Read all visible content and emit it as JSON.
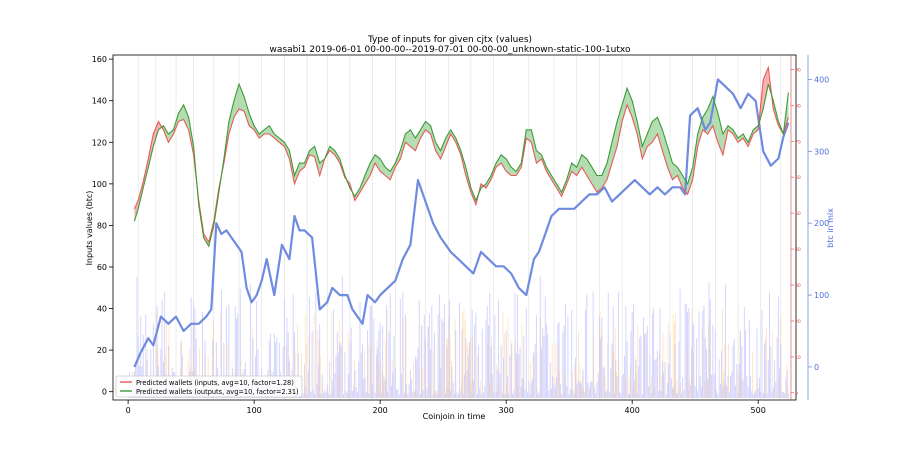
{
  "chart_data": {
    "type": "line",
    "title": "Type of inputs for given cjtx (values)",
    "subtitle": "wasabi1 2019-06-01 00-00-00--2019-07-01 00-00-00_unknown-static-100-1utxo",
    "xlabel": "Coinjoin in time",
    "ylabel": "Inputs values (btc)",
    "y2label": "btc in mix",
    "xlim": [
      -12,
      530
    ],
    "ylim": [
      -4,
      162
    ],
    "y2lim": [
      -46,
      434
    ],
    "y3lim": [
      -2,
      94
    ],
    "x_ticks": [
      "0",
      "100",
      "200",
      "300",
      "400",
      "500"
    ],
    "y_ticks": [
      "0",
      "20",
      "40",
      "60",
      "80",
      "100",
      "120",
      "140",
      "160"
    ],
    "y2_ticks": [
      "0",
      "100",
      "200",
      "300",
      "400"
    ],
    "y3_ticks": [
      "0",
      "10",
      "20",
      "30",
      "40",
      "50",
      "60",
      "70",
      "80",
      "90"
    ],
    "grid": false,
    "legend_position": "lower-left",
    "colors": {
      "inputs_line": "#e8595a",
      "outputs_line": "#3f9a3a",
      "fill_inputs_higher": "#f4a3a3",
      "fill_outputs_higher": "#a6d6a2",
      "btc_in_mix": "#6f8be0",
      "background_bars": "#c8c8ff",
      "background_bars_orange": "#ffd7a0",
      "secondary_red_axis": "#d64545",
      "vertical_markers": "#d8d8d8"
    },
    "series": [
      {
        "name": "Predicted wallets (inputs, avg=10, factor=1.28)",
        "x": [
          5,
          8,
          12,
          16,
          20,
          24,
          28,
          32,
          36,
          40,
          44,
          48,
          52,
          56,
          60,
          64,
          68,
          72,
          76,
          80,
          84,
          88,
          92,
          96,
          100,
          104,
          108,
          112,
          116,
          120,
          124,
          128,
          132,
          136,
          140,
          144,
          148,
          152,
          156,
          160,
          164,
          168,
          172,
          176,
          180,
          184,
          188,
          192,
          196,
          200,
          204,
          208,
          212,
          216,
          220,
          224,
          228,
          232,
          236,
          240,
          244,
          248,
          252,
          256,
          260,
          264,
          268,
          272,
          276,
          280,
          284,
          288,
          292,
          296,
          300,
          304,
          308,
          312,
          316,
          320,
          324,
          328,
          332,
          336,
          340,
          344,
          348,
          352,
          356,
          360,
          364,
          368,
          372,
          376,
          380,
          384,
          388,
          392,
          396,
          400,
          404,
          408,
          412,
          416,
          420,
          424,
          428,
          432,
          436,
          440,
          444,
          448,
          452,
          456,
          460,
          464,
          468,
          472,
          476,
          480,
          484,
          488,
          492,
          496,
          500,
          504,
          508,
          512,
          516,
          520,
          524
        ],
        "values": [
          88,
          92,
          101,
          112,
          124,
          130,
          126,
          120,
          124,
          130,
          131,
          126,
          114,
          92,
          76,
          72,
          82,
          98,
          110,
          124,
          132,
          136,
          135,
          128,
          126,
          122,
          124,
          124,
          122,
          120,
          118,
          112,
          100,
          106,
          108,
          114,
          113,
          104,
          112,
          116,
          114,
          110,
          103,
          100,
          92,
          96,
          100,
          104,
          110,
          106,
          104,
          102,
          108,
          112,
          120,
          118,
          116,
          122,
          126,
          124,
          116,
          112,
          118,
          124,
          120,
          114,
          104,
          96,
          90,
          100,
          98,
          102,
          108,
          110,
          106,
          104,
          104,
          108,
          122,
          120,
          110,
          112,
          106,
          102,
          98,
          94,
          100,
          106,
          104,
          108,
          104,
          100,
          96,
          98,
          102,
          110,
          118,
          130,
          138,
          132,
          124,
          112,
          118,
          120,
          124,
          116,
          108,
          102,
          104,
          98,
          95,
          102,
          118,
          126,
          124,
          128,
          120,
          114,
          126,
          124,
          120,
          122,
          118,
          124,
          126,
          150,
          156,
          136,
          128,
          124,
          132
        ]
      },
      {
        "name": "Predicted wallets (outputs, avg=10, factor=2.31)",
        "x": [
          5,
          8,
          12,
          16,
          20,
          24,
          28,
          32,
          36,
          40,
          44,
          48,
          52,
          56,
          60,
          64,
          68,
          72,
          76,
          80,
          84,
          88,
          92,
          96,
          100,
          104,
          108,
          112,
          116,
          120,
          124,
          128,
          132,
          136,
          140,
          144,
          148,
          152,
          156,
          160,
          164,
          168,
          172,
          176,
          180,
          184,
          188,
          192,
          196,
          200,
          204,
          208,
          212,
          216,
          220,
          224,
          228,
          232,
          236,
          240,
          244,
          248,
          252,
          256,
          260,
          264,
          268,
          272,
          276,
          280,
          284,
          288,
          292,
          296,
          300,
          304,
          308,
          312,
          316,
          320,
          324,
          328,
          332,
          336,
          340,
          344,
          348,
          352,
          356,
          360,
          364,
          368,
          372,
          376,
          380,
          384,
          388,
          392,
          396,
          400,
          404,
          408,
          412,
          416,
          420,
          424,
          428,
          432,
          436,
          440,
          444,
          448,
          452,
          456,
          460,
          464,
          468,
          472,
          476,
          480,
          484,
          488,
          492,
          496,
          500,
          504,
          508,
          512,
          516,
          520,
          524
        ],
        "values": [
          82,
          88,
          98,
          108,
          118,
          126,
          128,
          124,
          126,
          134,
          138,
          132,
          118,
          90,
          74,
          70,
          80,
          96,
          112,
          130,
          140,
          148,
          142,
          134,
          128,
          124,
          126,
          128,
          124,
          122,
          120,
          116,
          104,
          110,
          110,
          116,
          118,
          110,
          112,
          118,
          116,
          112,
          104,
          98,
          94,
          98,
          104,
          110,
          114,
          112,
          108,
          106,
          110,
          116,
          124,
          126,
          122,
          126,
          130,
          128,
          120,
          116,
          122,
          126,
          122,
          116,
          108,
          98,
          92,
          98,
          100,
          104,
          110,
          114,
          112,
          108,
          106,
          110,
          126,
          126,
          116,
          114,
          108,
          104,
          100,
          96,
          102,
          110,
          108,
          114,
          112,
          108,
          104,
          104,
          110,
          120,
          130,
          138,
          146,
          140,
          130,
          118,
          124,
          130,
          132,
          126,
          118,
          110,
          108,
          104,
          100,
          108,
          124,
          132,
          136,
          142,
          134,
          124,
          128,
          126,
          122,
          124,
          120,
          126,
          128,
          136,
          148,
          140,
          130,
          124,
          144
        ]
      },
      {
        "name": "btc in mix",
        "axis": "right",
        "x": [
          5,
          10,
          16,
          20,
          26,
          32,
          38,
          44,
          50,
          56,
          62,
          66,
          70,
          74,
          78,
          82,
          86,
          90,
          94,
          98,
          102,
          106,
          110,
          116,
          122,
          128,
          132,
          136,
          140,
          146,
          152,
          158,
          162,
          168,
          174,
          178,
          182,
          186,
          190,
          196,
          200,
          206,
          212,
          218,
          224,
          230,
          236,
          242,
          248,
          252,
          256,
          262,
          268,
          274,
          280,
          286,
          292,
          298,
          304,
          310,
          316,
          322,
          326,
          330,
          336,
          342,
          348,
          354,
          360,
          366,
          372,
          378,
          384,
          390,
          396,
          402,
          408,
          414,
          420,
          426,
          432,
          438,
          442,
          446,
          452,
          458,
          462,
          468,
          474,
          480,
          486,
          492,
          498,
          504,
          510,
          516,
          520,
          524
        ],
        "values": [
          0,
          20,
          40,
          30,
          70,
          60,
          70,
          50,
          60,
          60,
          70,
          80,
          200,
          185,
          190,
          180,
          170,
          160,
          110,
          90,
          100,
          120,
          150,
          100,
          170,
          150,
          210,
          190,
          190,
          180,
          80,
          90,
          110,
          100,
          100,
          80,
          70,
          60,
          100,
          90,
          100,
          110,
          120,
          150,
          170,
          260,
          230,
          200,
          180,
          170,
          160,
          150,
          140,
          130,
          160,
          150,
          140,
          140,
          130,
          110,
          100,
          150,
          160,
          180,
          210,
          220,
          220,
          220,
          230,
          240,
          240,
          250,
          230,
          240,
          250,
          260,
          250,
          240,
          250,
          240,
          250,
          250,
          240,
          350,
          360,
          330,
          340,
          400,
          390,
          380,
          360,
          380,
          370,
          300,
          280,
          290,
          320,
          340
        ]
      }
    ],
    "background_bars_scale_note": "",
    "legend": [
      {
        "label": "Predicted wallets (inputs, avg=10, factor=1.28)",
        "color": "#e8595a"
      },
      {
        "label": "Predicted wallets (outputs, avg=10, factor=2.31)",
        "color": "#3f9a3a"
      }
    ]
  }
}
